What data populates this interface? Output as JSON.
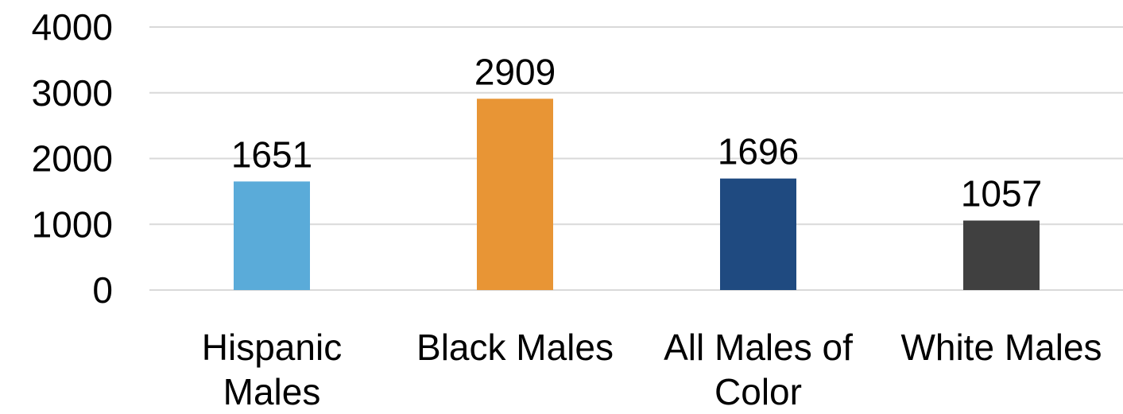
{
  "chart_data": {
    "type": "bar",
    "title": "",
    "xlabel": "",
    "ylabel": "",
    "ylim": [
      0,
      4000
    ],
    "yticks": [
      0,
      1000,
      2000,
      3000,
      4000
    ],
    "grid": true,
    "categories": [
      [
        "Hispanic",
        "Males"
      ],
      [
        "Black Males"
      ],
      [
        "All Males of",
        "Color"
      ],
      [
        "White Males"
      ]
    ],
    "values": [
      1651,
      2909,
      1696,
      1057
    ],
    "data_labels": [
      "1651",
      "2909",
      "1696",
      "1057"
    ],
    "colors": [
      "#5aabd9",
      "#e89535",
      "#1f4a80",
      "#404040"
    ]
  }
}
